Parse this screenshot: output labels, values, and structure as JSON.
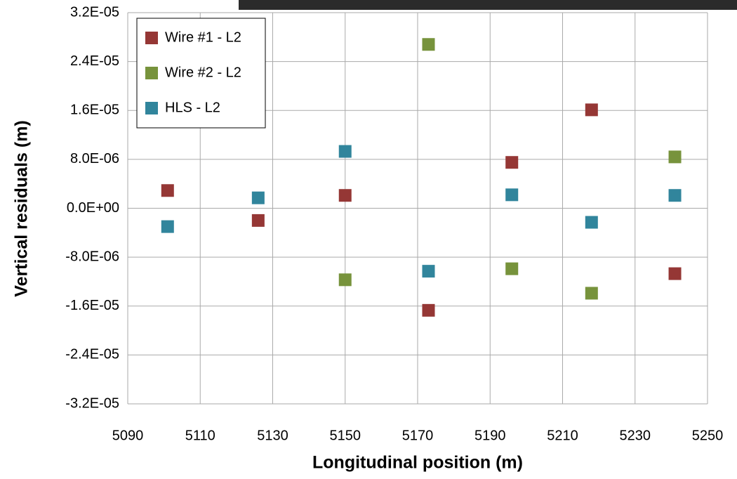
{
  "chart_data": {
    "type": "scatter",
    "x_label": "Longitudinal position (m)",
    "y_label": "Vertical residuals (m)",
    "xlim": [
      5090,
      5250
    ],
    "xticks": [
      5090,
      5110,
      5130,
      5150,
      5170,
      5190,
      5210,
      5230,
      5250
    ],
    "ylim": [
      -3.2e-05,
      3.2e-05
    ],
    "yticks": [
      {
        "value": -3.2e-05,
        "label": "-3.2E-05"
      },
      {
        "value": -2.4e-05,
        "label": "-2.4E-05"
      },
      {
        "value": -1.6e-05,
        "label": "-1.6E-05"
      },
      {
        "value": -8e-06,
        "label": "-8.0E-06"
      },
      {
        "value": 0,
        "label": "0.0E+00"
      },
      {
        "value": 8e-06,
        "label": "8.0E-06"
      },
      {
        "value": 1.6e-05,
        "label": "1.6E-05"
      },
      {
        "value": 2.4e-05,
        "label": "2.4E-05"
      },
      {
        "value": 3.2e-05,
        "label": "3.2E-05"
      }
    ],
    "grid": true,
    "legend": "top-left",
    "series": [
      {
        "name": "Wire #1 - L2",
        "color": "#953735",
        "x": [
          5101,
          5126,
          5150,
          5173,
          5196,
          5218,
          5241
        ],
        "values": [
          2.9e-06,
          -2e-06,
          2.1e-06,
          -1.67e-05,
          7.5e-06,
          1.61e-05,
          -1.07e-05
        ]
      },
      {
        "name": "Wire #2 - L2",
        "color": "#77933c",
        "x": [
          5150,
          5173,
          5196,
          5218,
          5241
        ],
        "values": [
          -1.17e-05,
          2.68e-05,
          -9.9e-06,
          -1.39e-05,
          8.4e-06
        ]
      },
      {
        "name": "HLS - L2",
        "color": "#31859c",
        "x": [
          5101,
          5126,
          5150,
          5173,
          5196,
          5218,
          5241
        ],
        "values": [
          -3e-06,
          1.7e-06,
          9.3e-06,
          -1.03e-05,
          2.2e-06,
          -2.3e-06,
          2.1e-06
        ]
      }
    ]
  }
}
